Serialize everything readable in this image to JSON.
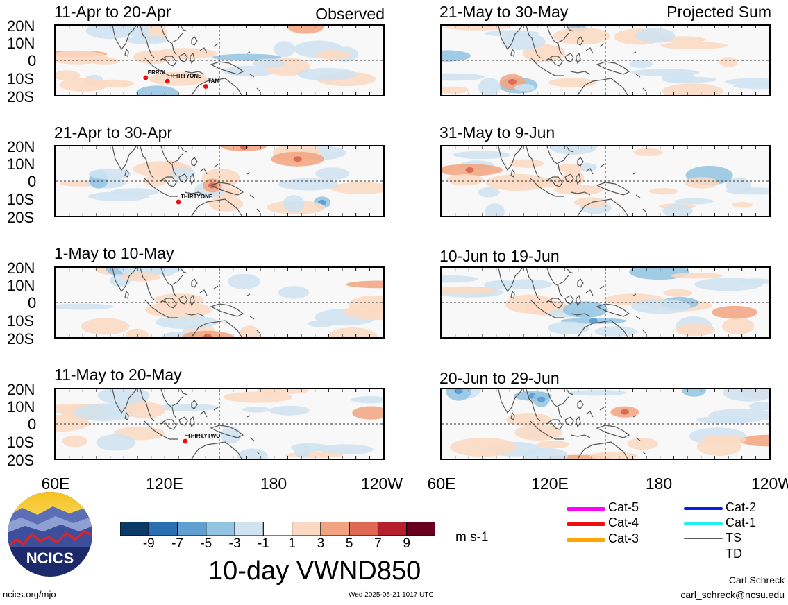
{
  "chart_data": {
    "type": "heatmap",
    "variable": "10-day VWND850",
    "units": "m s-1",
    "lat_ticks": [
      "20N",
      "10N",
      "0",
      "10S",
      "20S"
    ],
    "lon_ticks": [
      "60E",
      "120E",
      "180",
      "120W"
    ],
    "colorbar": {
      "ticks": [
        "-9",
        "-7",
        "-5",
        "-3",
        "-1",
        "1",
        "3",
        "5",
        "7",
        "9"
      ],
      "colors": [
        "#0b3a66",
        "#2b6fb3",
        "#5f9fd2",
        "#93c4e2",
        "#cfe3f1",
        "#ffffff",
        "#fcd9c2",
        "#f2a480",
        "#de6a55",
        "#b4202c",
        "#6a0020"
      ]
    },
    "panels": [
      {
        "id": "p1",
        "title": "11-Apr to 20-Apr",
        "tag": "Observed",
        "storms": [
          {
            "name": "ERROL",
            "lon": 126,
            "lat": -10
          },
          {
            "name": "THIRTYONE",
            "lon": 142,
            "lat": -12
          },
          {
            "name": "TAM",
            "lon": 170,
            "lat": -15
          }
        ]
      },
      {
        "id": "p2",
        "title": "21-Apr to 30-Apr",
        "tag": "",
        "storms": [
          {
            "name": "THIRTYONE",
            "lon": 150,
            "lat": -12
          }
        ]
      },
      {
        "id": "p3",
        "title": "1-May to 10-May",
        "tag": "",
        "storms": []
      },
      {
        "id": "p4",
        "title": "11-May to 20-May",
        "tag": "",
        "storms": [
          {
            "name": "THIRTYTWO",
            "lon": 155,
            "lat": -10
          }
        ]
      },
      {
        "id": "p5",
        "title": "21-May to 30-May",
        "tag": "Projected Sum",
        "storms": []
      },
      {
        "id": "p6",
        "title": "31-May to 9-Jun",
        "tag": "",
        "storms": []
      },
      {
        "id": "p7",
        "title": "10-Jun to 19-Jun",
        "tag": "",
        "storms": []
      },
      {
        "id": "p8",
        "title": "20-Jun to 29-Jun",
        "tag": "",
        "storms": []
      }
    ]
  },
  "legend": [
    {
      "label": "Cat-5",
      "color": "#ff00ff"
    },
    {
      "label": "Cat-4",
      "color": "#ee1010"
    },
    {
      "label": "Cat-3",
      "color": "#ffa500"
    },
    {
      "label": "Cat-2",
      "color": "#0a1ee6"
    },
    {
      "label": "Cat-1",
      "color": "#22eeee"
    },
    {
      "label": "TS",
      "color": "#555555"
    },
    {
      "label": "TD",
      "color": "#aaaaaa"
    }
  ],
  "logo": {
    "text": "NCICS"
  },
  "footer": {
    "site": "ncics.org/mjo",
    "timestamp": "Wed 2025-05-21 1017 UTC",
    "author": "Carl Schreck",
    "email": "carl_schreck@ncsu.edu"
  }
}
